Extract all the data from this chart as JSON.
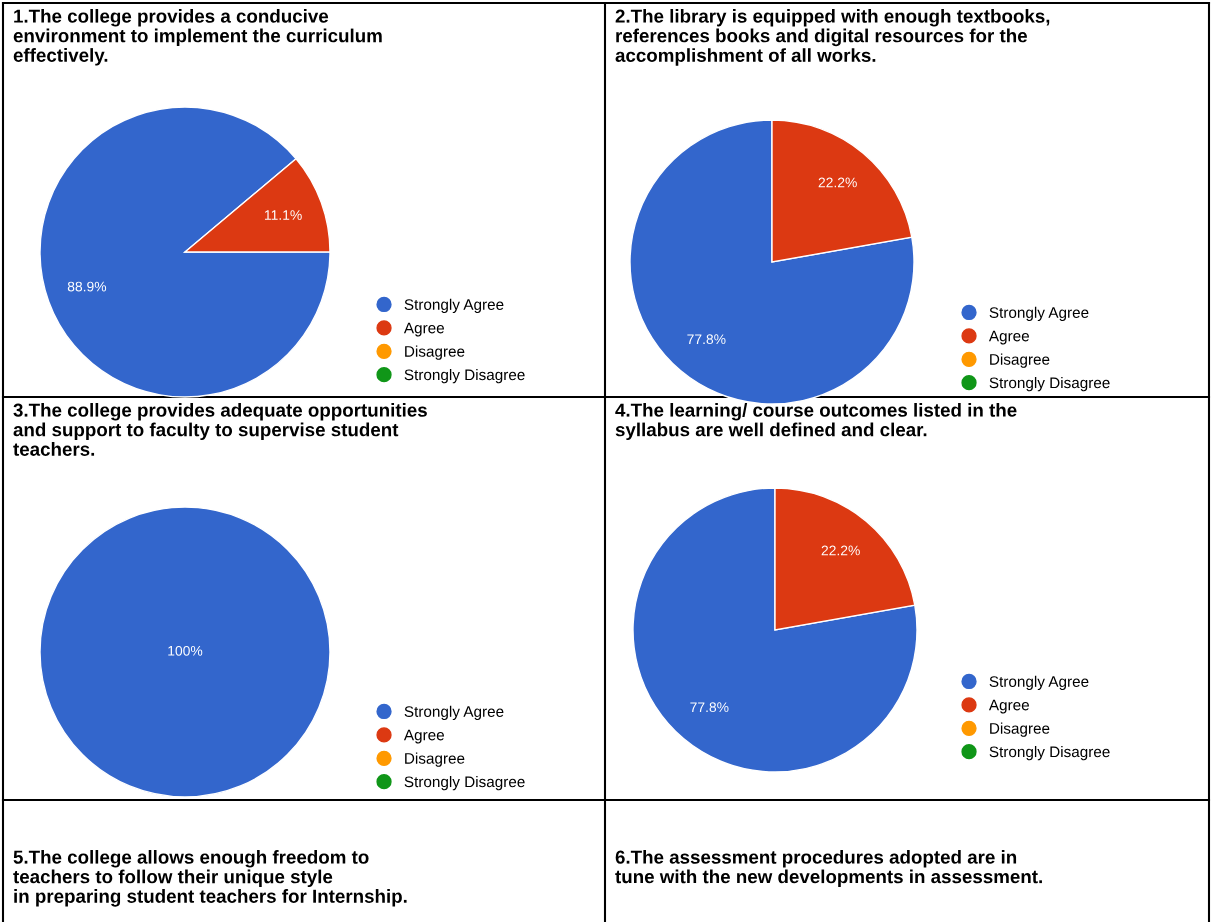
{
  "chart_data": [
    {
      "type": "pie",
      "title": "1.The college provides a conducive\nenvironment to implement the curriculum\neffectively.",
      "categories": [
        "Strongly Agree",
        "Agree",
        "Disagree",
        "Strongly Disagree"
      ],
      "values": [
        88.9,
        11.1,
        0,
        0
      ],
      "value_labels": [
        "88.9%",
        "11.1%",
        null,
        null
      ],
      "colors": [
        "#3366cc",
        "#dc3912",
        "#ff9900",
        "#109618"
      ],
      "legend": "right"
    },
    {
      "type": "pie",
      "title": "2.The library is equipped with enough textbooks,\nreferences books and digital resources for the\naccomplishment of all works.",
      "categories": [
        "Strongly Agree",
        "Agree",
        "Disagree",
        "Strongly Disagree"
      ],
      "values": [
        77.8,
        22.2,
        0,
        0
      ],
      "value_labels": [
        "77.8%",
        "22.2%",
        null,
        null
      ],
      "colors": [
        "#3366cc",
        "#dc3912",
        "#ff9900",
        "#109618"
      ],
      "legend": "right"
    },
    {
      "type": "pie",
      "title": "3.The college provides adequate opportunities\nand support to faculty to supervise student\nteachers.",
      "categories": [
        "Strongly Agree",
        "Agree",
        "Disagree",
        "Strongly Disagree"
      ],
      "values": [
        100,
        0,
        0,
        0
      ],
      "value_labels": [
        "100%",
        null,
        null,
        null
      ],
      "colors": [
        "#3366cc",
        "#dc3912",
        "#ff9900",
        "#109618"
      ],
      "legend": "right"
    },
    {
      "type": "pie",
      "title": "4.The learning/ course outcomes listed in the\nsyllabus are well defined and clear.",
      "categories": [
        "Strongly Agree",
        "Agree",
        "Disagree",
        "Strongly Disagree"
      ],
      "values": [
        77.8,
        22.2,
        0,
        0
      ],
      "value_labels": [
        "77.8%",
        "22.2%",
        null,
        null
      ],
      "colors": [
        "#3366cc",
        "#dc3912",
        "#ff9900",
        "#109618"
      ],
      "legend": "right"
    },
    {
      "type": "other",
      "title": "5.The college allows enough freedom to\nteachers to follow their unique style\nin preparing student teachers for Internship."
    },
    {
      "type": "other",
      "title": "6.The assessment procedures adopted are in\ntune with the new developments in assessment."
    }
  ]
}
